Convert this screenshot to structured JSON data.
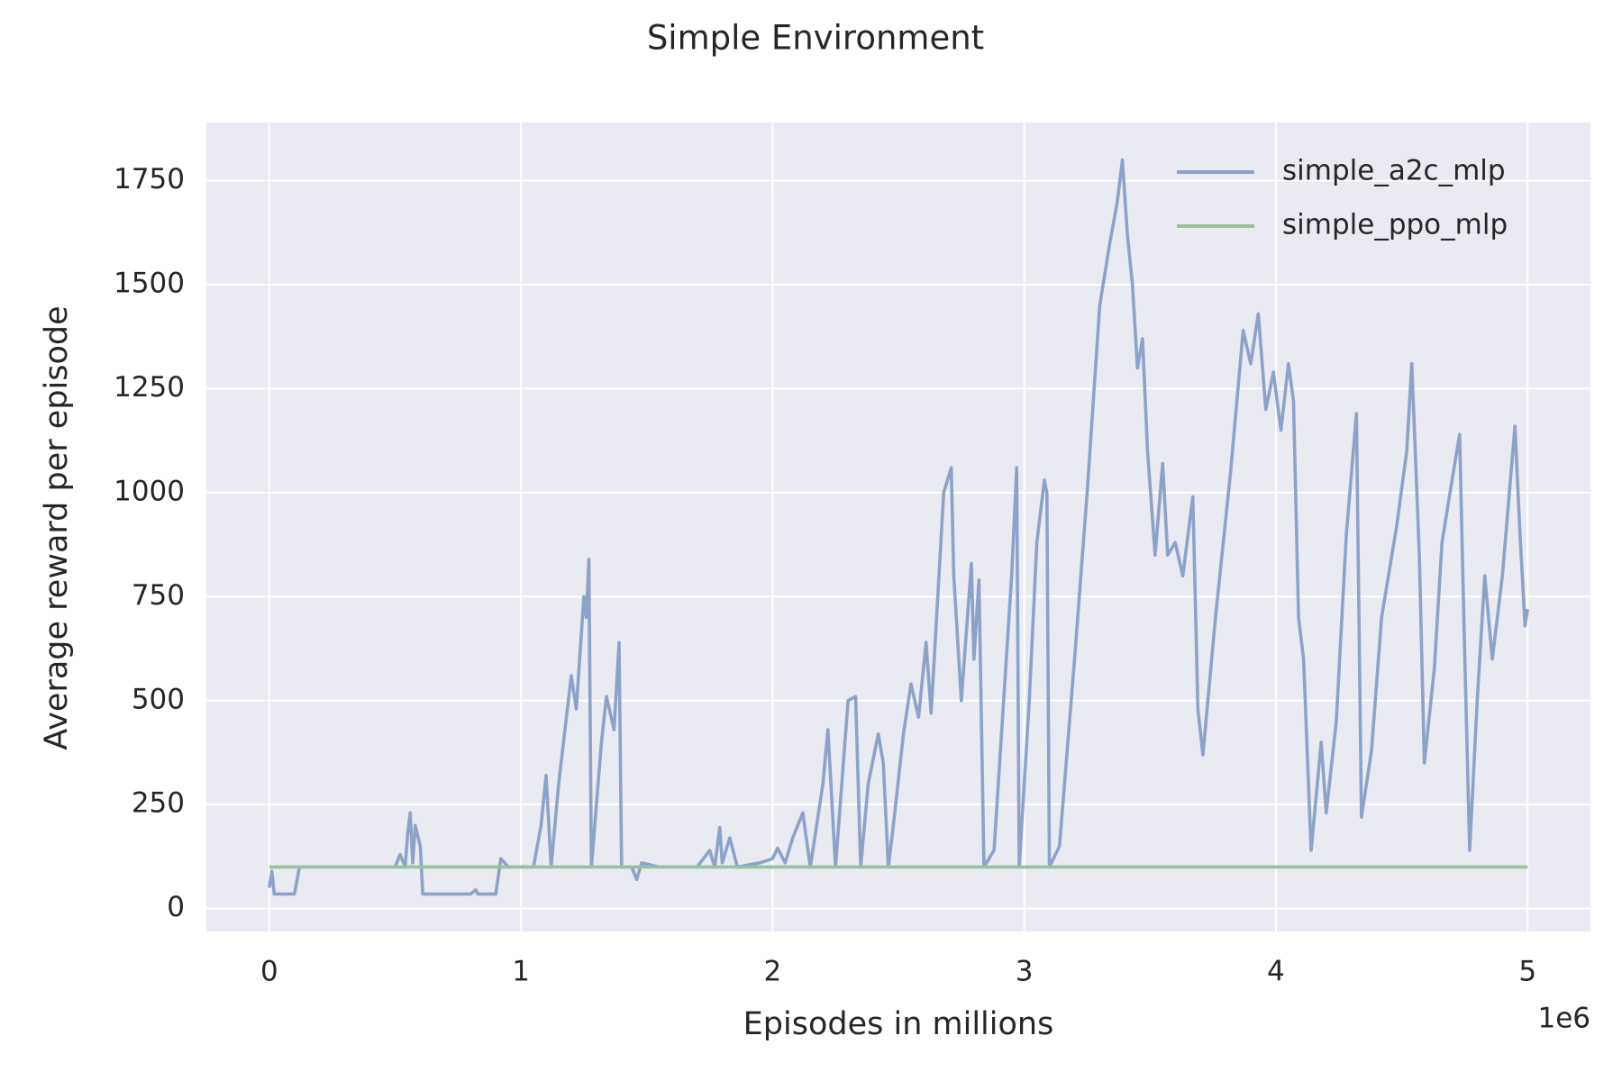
{
  "chart_data": {
    "type": "line",
    "title": "Simple Environment",
    "x_label": "Episodes in millions",
    "y_label": "Average reward per episode",
    "x_offset_label": "1e6",
    "xlim": [
      -250000,
      5250000
    ],
    "ylim": [
      -55,
      1890
    ],
    "xticks": [
      0,
      {
        "value": 1000000,
        "label": "1"
      },
      {
        "value": 2000000,
        "label": "2"
      },
      {
        "value": 3000000,
        "label": "3"
      },
      {
        "value": 4000000,
        "label": "4"
      },
      {
        "value": 5000000,
        "label": "5"
      }
    ],
    "yticks": [
      0,
      250,
      500,
      750,
      1000,
      1250,
      1500,
      1750
    ],
    "grid": true,
    "legend": "upper right",
    "series": [
      {
        "name": "simple_a2c_mlp",
        "color": "#8da2c9",
        "x": [
          0,
          10000,
          20000,
          100000,
          120000,
          500000,
          520000,
          540000,
          550000,
          560000,
          570000,
          580000,
          600000,
          610000,
          800000,
          820000,
          830000,
          900000,
          920000,
          950000,
          1050000,
          1080000,
          1100000,
          1120000,
          1150000,
          1200000,
          1220000,
          1250000,
          1260000,
          1270000,
          1280000,
          1320000,
          1340000,
          1370000,
          1390000,
          1400000,
          1440000,
          1460000,
          1480000,
          1550000,
          1700000,
          1750000,
          1770000,
          1790000,
          1800000,
          1830000,
          1860000,
          1950000,
          2000000,
          2020000,
          2050000,
          2080000,
          2120000,
          2150000,
          2200000,
          2220000,
          2250000,
          2300000,
          2330000,
          2350000,
          2380000,
          2420000,
          2440000,
          2460000,
          2480000,
          2520000,
          2550000,
          2580000,
          2610000,
          2630000,
          2680000,
          2710000,
          2720000,
          2750000,
          2790000,
          2800000,
          2820000,
          2840000,
          2880000,
          2950000,
          2970000,
          2980000,
          3020000,
          3050000,
          3080000,
          3090000,
          3100000,
          3140000,
          3200000,
          3250000,
          3300000,
          3340000,
          3370000,
          3390000,
          3410000,
          3430000,
          3450000,
          3470000,
          3490000,
          3520000,
          3550000,
          3570000,
          3600000,
          3630000,
          3670000,
          3690000,
          3710000,
          3760000,
          3820000,
          3870000,
          3900000,
          3930000,
          3960000,
          3990000,
          4020000,
          4050000,
          4070000,
          4090000,
          4110000,
          4140000,
          4180000,
          4200000,
          4240000,
          4280000,
          4320000,
          4340000,
          4380000,
          4420000,
          4480000,
          4520000,
          4540000,
          4570000,
          4590000,
          4630000,
          4660000,
          4700000,
          4730000,
          4750000,
          4770000,
          4800000,
          4830000,
          4860000,
          4900000,
          4950000,
          4970000,
          4990000,
          5000000
        ],
        "values": [
          50,
          90,
          35,
          35,
          100,
          100,
          130,
          100,
          180,
          230,
          110,
          200,
          150,
          35,
          35,
          45,
          35,
          35,
          120,
          100,
          100,
          200,
          320,
          100,
          300,
          560,
          480,
          750,
          700,
          840,
          100,
          400,
          510,
          430,
          640,
          100,
          100,
          70,
          110,
          100,
          100,
          140,
          100,
          195,
          110,
          170,
          100,
          110,
          120,
          145,
          110,
          170,
          230,
          100,
          300,
          430,
          100,
          500,
          510,
          100,
          300,
          420,
          350,
          100,
          200,
          420,
          540,
          460,
          640,
          470,
          1000,
          1060,
          800,
          500,
          830,
          600,
          790,
          100,
          140,
          800,
          1060,
          100,
          500,
          880,
          1030,
          1000,
          100,
          150,
          600,
          1000,
          1450,
          1600,
          1700,
          1800,
          1620,
          1500,
          1300,
          1370,
          1100,
          850,
          1070,
          850,
          880,
          800,
          990,
          480,
          370,
          700,
          1050,
          1390,
          1310,
          1430,
          1200,
          1290,
          1150,
          1310,
          1220,
          700,
          600,
          140,
          400,
          230,
          450,
          900,
          1190,
          220,
          380,
          700,
          920,
          1100,
          1310,
          850,
          350,
          580,
          880,
          1030,
          1140,
          620,
          140,
          500,
          800,
          600,
          800,
          1160,
          900,
          680,
          720
        ]
      },
      {
        "name": "simple_ppo_mlp",
        "color": "#94c39e",
        "x": [
          0,
          5000000
        ],
        "values": [
          100,
          100
        ]
      }
    ]
  }
}
